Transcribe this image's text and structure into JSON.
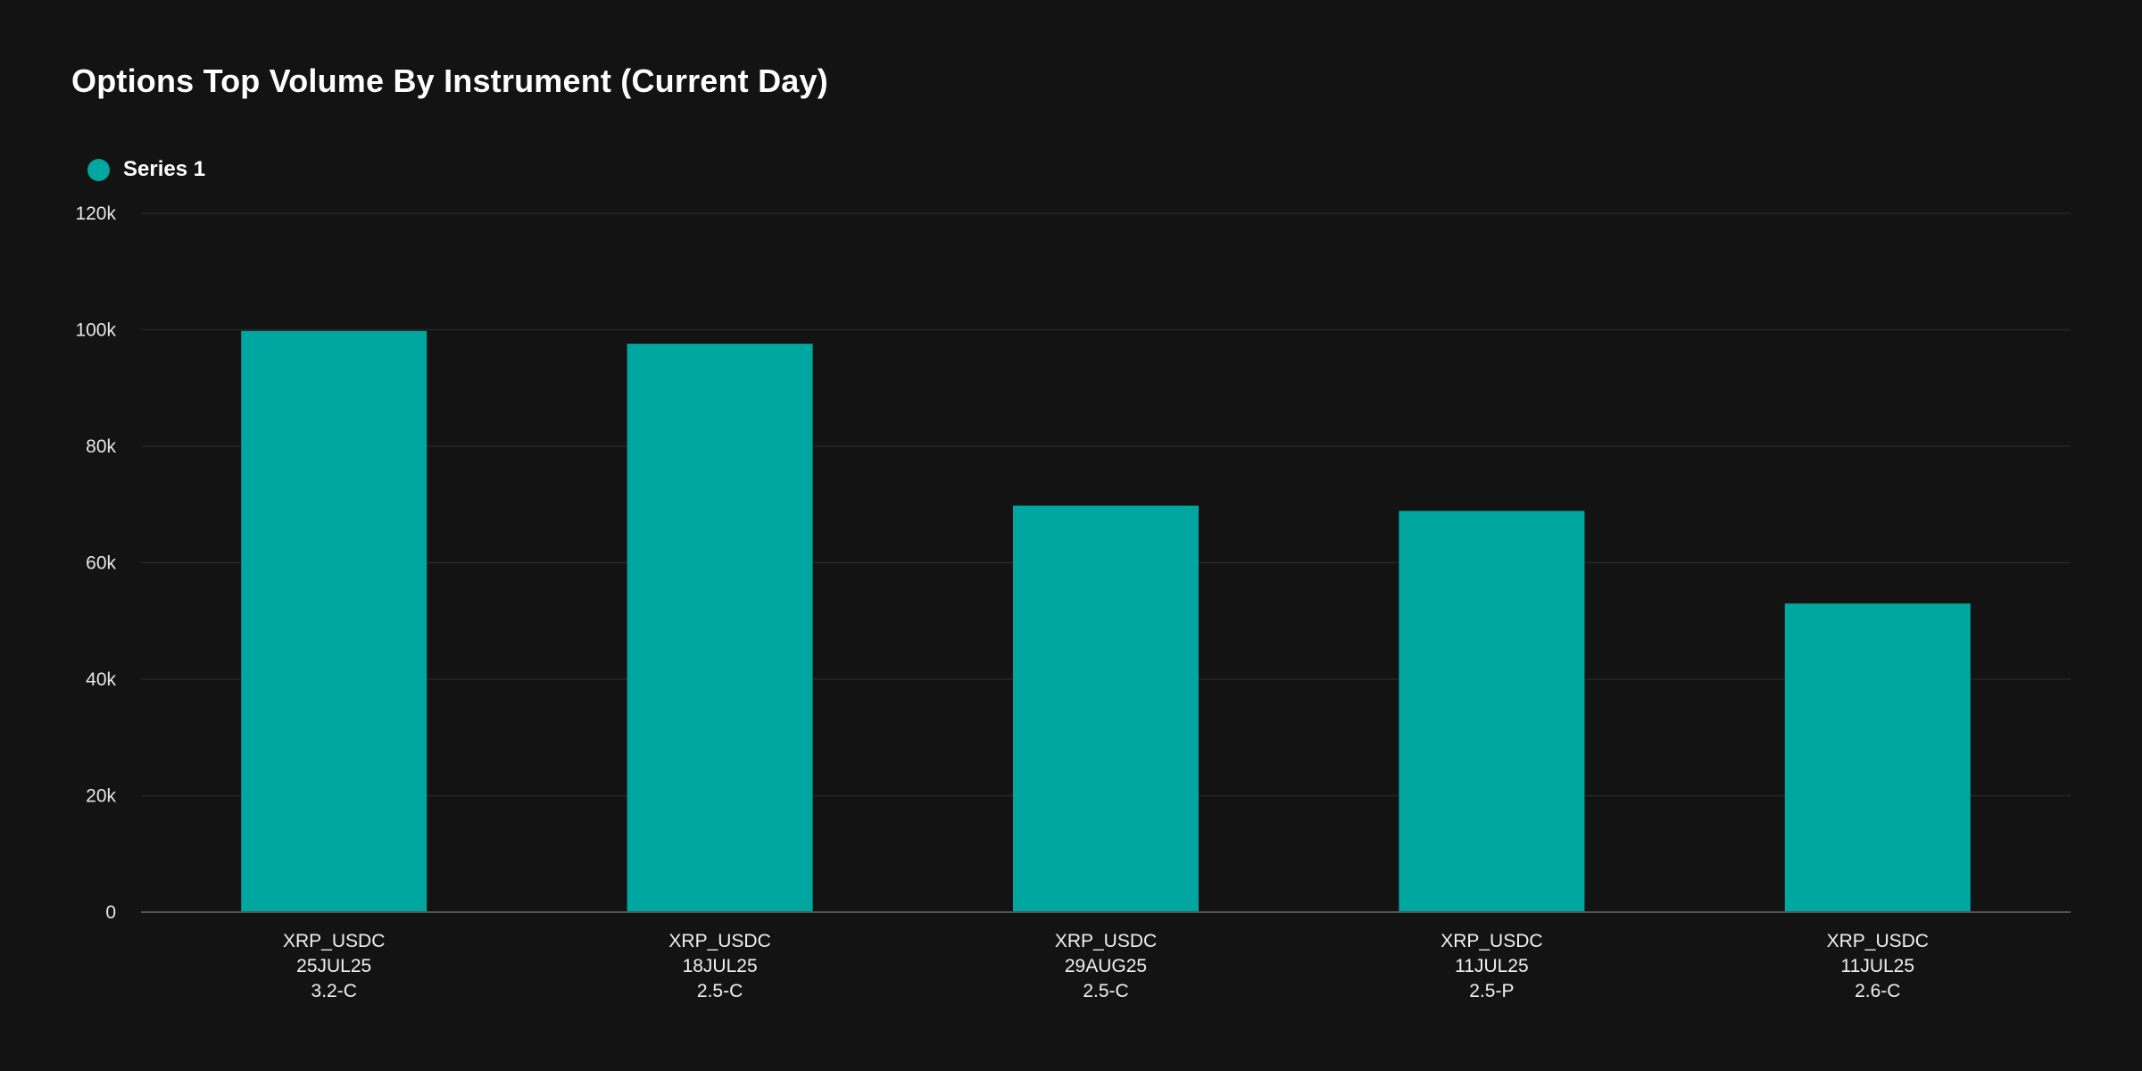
{
  "chart_data": {
    "type": "bar",
    "title": "Options Top Volume By Instrument (Current Day)",
    "xlabel": "",
    "ylabel": "",
    "categories": [
      [
        "XRP_USDC",
        "25JUL25",
        "3.2-C"
      ],
      [
        "XRP_USDC",
        "18JUL25",
        "2.5-C"
      ],
      [
        "XRP_USDC",
        "29AUG25",
        "2.5-C"
      ],
      [
        "XRP_USDC",
        "11JUL25",
        "2.5-P"
      ],
      [
        "XRP_USDC",
        "11JUL25",
        "2.6-C"
      ]
    ],
    "series": [
      {
        "name": "Series 1",
        "color": "#00a6a0",
        "values": [
          99800,
          97600,
          69800,
          68900,
          53000
        ]
      }
    ],
    "ylim": [
      0,
      120000
    ],
    "yticks": [
      0,
      20000,
      40000,
      60000,
      80000,
      100000,
      120000
    ],
    "ytick_labels": [
      "0",
      "20k",
      "40k",
      "60k",
      "80k",
      "100k",
      "120k"
    ],
    "grid": true,
    "legend_position": "top-left"
  }
}
